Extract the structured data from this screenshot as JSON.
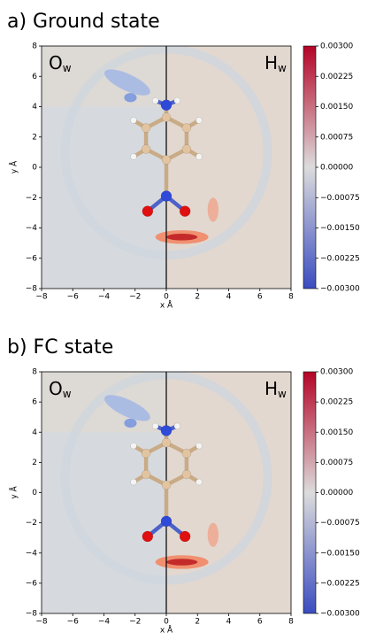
{
  "chart_data": [
    {
      "type": "heatmap",
      "title": "a) Ground state",
      "xlabel": "x Å",
      "ylabel": "y Å",
      "xlim": [
        -8,
        8
      ],
      "ylim": [
        -8,
        8
      ],
      "xticks": [
        {
          "value": -8,
          "label": "−8"
        },
        {
          "value": -6,
          "label": "−6"
        },
        {
          "value": -4,
          "label": "−4"
        },
        {
          "value": -2,
          "label": "−2"
        },
        0,
        2,
        4,
        6,
        8
      ],
      "yticks": [
        {
          "value": -8,
          "label": "−8"
        },
        {
          "value": -6,
          "label": "−6"
        },
        {
          "value": -4,
          "label": "−4"
        },
        {
          "value": -2,
          "label": "−2"
        },
        0,
        2,
        4,
        6,
        8
      ],
      "annotations": [
        {
          "text": "O",
          "subscript": "w"
        },
        {
          "text": "H",
          "subscript": "w"
        }
      ],
      "colorbar": {
        "lim": [
          -0.003,
          0.003
        ],
        "colors": [
          "#3b4cc0",
          "#dcdcdc",
          "#b40426"
        ],
        "ticks": [
          {
            "value": 0.003,
            "label": "0.00300"
          },
          {
            "value": 0.00225,
            "label": "0.00225"
          },
          {
            "value": 0.0015,
            "label": "0.00150"
          },
          {
            "value": 0.00075,
            "label": "0.00075"
          },
          {
            "value": 0,
            "label": "0.00000"
          },
          {
            "value": -0.00075,
            "label": "−0.00075"
          },
          {
            "value": -0.0015,
            "label": "−0.00150"
          },
          {
            "value": -0.00225,
            "label": "−0.00225"
          },
          {
            "value": -0.003,
            "label": "−0.00300"
          }
        ]
      }
    },
    {
      "type": "heatmap",
      "title": "b) FC state",
      "xlabel": "x Å",
      "ylabel": "y Å",
      "xlim": [
        -8,
        8
      ],
      "ylim": [
        -8,
        8
      ],
      "xticks": [
        {
          "value": -8,
          "label": "−8"
        },
        {
          "value": -6,
          "label": "−6"
        },
        {
          "value": -4,
          "label": "−4"
        },
        {
          "value": -2,
          "label": "−2"
        },
        0,
        2,
        4,
        6,
        8
      ],
      "yticks": [
        {
          "value": -8,
          "label": "−8"
        },
        {
          "value": -6,
          "label": "−6"
        },
        {
          "value": -4,
          "label": "−4"
        },
        {
          "value": -2,
          "label": "−2"
        },
        0,
        2,
        4,
        6,
        8
      ],
      "annotations": [
        {
          "text": "O",
          "subscript": "w"
        },
        {
          "text": "H",
          "subscript": "w"
        }
      ],
      "colorbar": {
        "lim": [
          -0.003,
          0.003
        ],
        "colors": [
          "#3b4cc0",
          "#dcdcdc",
          "#b40426"
        ],
        "ticks": [
          {
            "value": 0.003,
            "label": "0.00300"
          },
          {
            "value": 0.00225,
            "label": "0.00225"
          },
          {
            "value": 0.0015,
            "label": "0.00150"
          },
          {
            "value": 0.00075,
            "label": "0.00075"
          },
          {
            "value": 0,
            "label": "0.00000"
          },
          {
            "value": -0.00075,
            "label": "−0.00075"
          },
          {
            "value": -0.0015,
            "label": "−0.00150"
          },
          {
            "value": -0.00225,
            "label": "−0.00225"
          },
          {
            "value": -0.003,
            "label": "−0.00300"
          }
        ]
      }
    }
  ]
}
